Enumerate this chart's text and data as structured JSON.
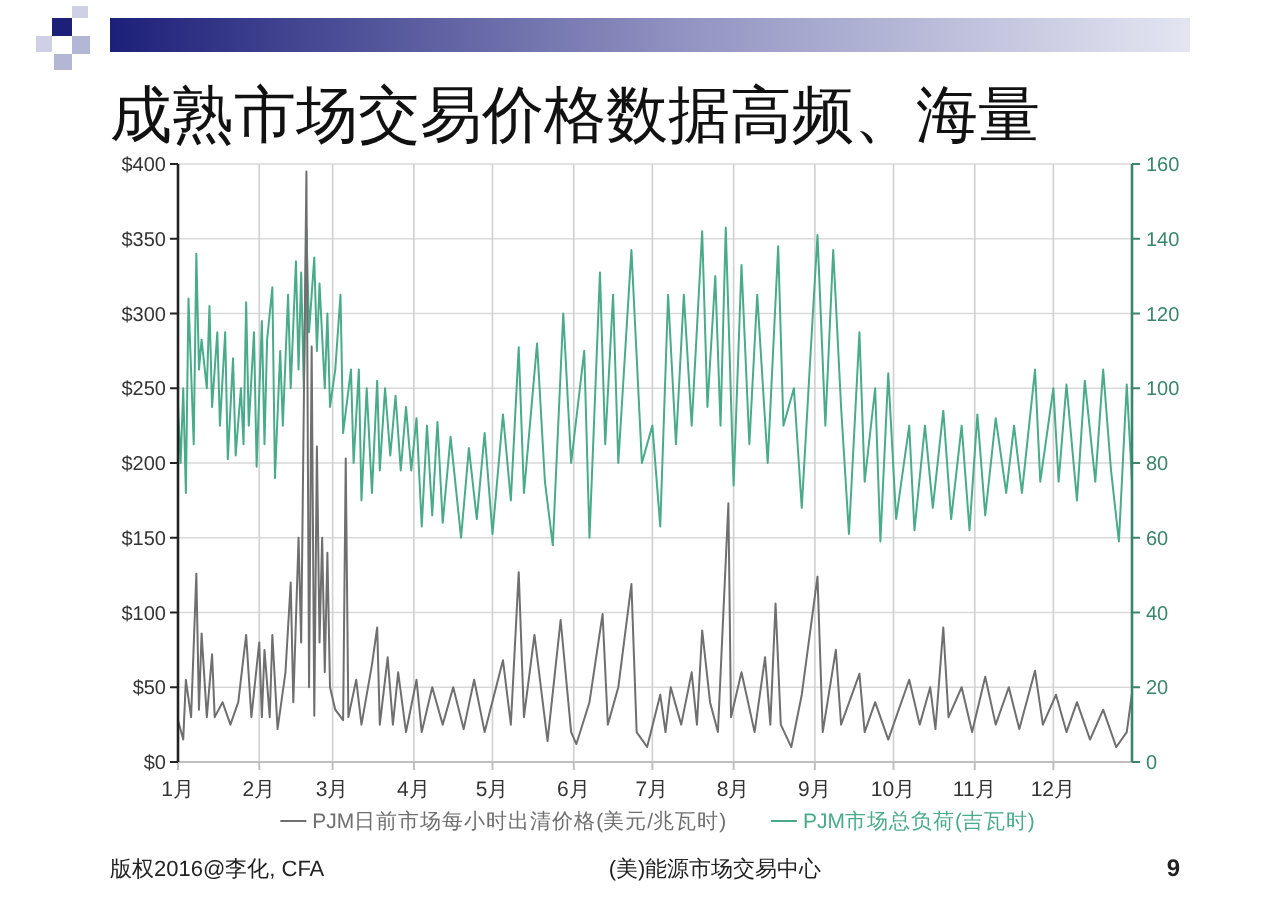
{
  "chart_data": {
    "type": "line",
    "title": "成熟市场交易价格数据高频、海量",
    "xlim": [
      "--01-01",
      "--12-31"
    ],
    "xticks": [
      {
        "value": "--01-01",
        "label": "1月"
      },
      {
        "value": "--02-01",
        "label": "2月"
      },
      {
        "value": "--03-01",
        "label": "3月"
      },
      {
        "value": "--04-01",
        "label": "4月"
      },
      {
        "value": "--05-01",
        "label": "5月"
      },
      {
        "value": "--06-01",
        "label": "6月"
      },
      {
        "value": "--07-01",
        "label": "7月"
      },
      {
        "value": "--08-01",
        "label": "8月"
      },
      {
        "value": "--09-01",
        "label": "9月"
      },
      {
        "value": "--10-01",
        "label": "10月"
      },
      {
        "value": "--11-01",
        "label": "11月"
      },
      {
        "value": "--12-01",
        "label": "12月"
      }
    ],
    "ylim": [
      0,
      400
    ],
    "yticks": [
      {
        "value": 0,
        "label": "$0"
      },
      {
        "value": 50,
        "label": "$50"
      },
      {
        "value": 100,
        "label": "$100"
      },
      {
        "value": 150,
        "label": "$150"
      },
      {
        "value": 200,
        "label": "$200"
      },
      {
        "value": 250,
        "label": "$250"
      },
      {
        "value": 300,
        "label": "$300"
      },
      {
        "value": 350,
        "label": "$350"
      },
      {
        "value": 400,
        "label": "$400"
      }
    ],
    "y2lim": [
      0,
      160
    ],
    "y2ticks": [
      0,
      20,
      40,
      60,
      80,
      100,
      120,
      140,
      160
    ],
    "grid": true,
    "legend": "bottom",
    "series": [
      {
        "name": "PJM日前市场每小时出清价格(美元/兆瓦时)",
        "color": "#6f6f6f",
        "x": [
          "--01-01",
          "--01-03",
          "--01-04",
          "--01-06",
          "--01-08",
          "--01-09",
          "--01-10",
          "--01-12",
          "--01-14",
          "--01-15",
          "--01-18",
          "--01-21",
          "--01-24",
          "--01-27",
          "--01-29",
          "--02-01",
          "--02-02",
          "--02-03",
          "--02-05",
          "--02-06",
          "--02-08",
          "--02-11",
          "--02-13",
          "--02-14",
          "--02-16",
          "--02-17",
          "--02-19",
          "--02-20",
          "--02-21",
          "--02-22",
          "--02-23",
          "--02-24",
          "--02-25",
          "--02-26",
          "--02-27",
          "--02-28",
          "--03-02",
          "--03-05",
          "--03-06",
          "--03-07",
          "--03-10",
          "--03-12",
          "--03-16",
          "--03-18",
          "--03-19",
          "--03-22",
          "--03-24",
          "--03-26",
          "--03-29",
          "--04-02",
          "--04-04",
          "--04-08",
          "--04-12",
          "--04-16",
          "--04-20",
          "--04-24",
          "--04-28",
          "--05-05",
          "--05-08",
          "--05-11",
          "--05-13",
          "--05-17",
          "--05-22",
          "--05-27",
          "--05-31",
          "--06-02",
          "--06-07",
          "--06-12",
          "--06-14",
          "--06-18",
          "--06-23",
          "--06-25",
          "--06-29",
          "--07-04",
          "--07-06",
          "--07-08",
          "--07-12",
          "--07-16",
          "--07-18",
          "--07-20",
          "--07-23",
          "--07-26",
          "--07-30",
          "--07-31",
          "--08-04",
          "--08-09",
          "--08-13",
          "--08-15",
          "--08-17",
          "--08-19",
          "--08-23",
          "--08-27",
          "--09-02",
          "--09-04",
          "--09-09",
          "--09-11",
          "--09-18",
          "--09-20",
          "--09-24",
          "--09-29",
          "--10-07",
          "--10-11",
          "--10-15",
          "--10-17",
          "--10-20",
          "--10-22",
          "--10-27",
          "--10-31",
          "--11-05",
          "--11-09",
          "--11-14",
          "--11-18",
          "--11-24",
          "--11-27",
          "--12-02",
          "--12-06",
          "--12-10",
          "--12-15",
          "--12-20",
          "--12-25",
          "--12-29",
          "--12-31"
        ],
        "values": [
          28,
          15,
          55,
          30,
          126,
          35,
          86,
          30,
          72,
          30,
          40,
          25,
          40,
          85,
          30,
          80,
          30,
          75,
          30,
          85,
          22,
          60,
          120,
          40,
          150,
          80,
          395,
          50,
          278,
          31,
          211,
          80,
          150,
          60,
          140,
          50,
          35,
          28,
          203,
          30,
          55,
          25,
          65,
          90,
          25,
          70,
          25,
          60,
          20,
          55,
          20,
          50,
          25,
          50,
          22,
          55,
          20,
          68,
          25,
          127,
          30,
          85,
          14,
          95,
          20,
          12,
          40,
          99,
          25,
          50,
          119,
          20,
          10,
          45,
          20,
          50,
          25,
          60,
          25,
          88,
          40,
          20,
          173,
          30,
          60,
          20,
          70,
          25,
          106,
          25,
          10,
          45,
          124,
          20,
          75,
          25,
          59,
          20,
          40,
          15,
          55,
          25,
          50,
          22,
          90,
          30,
          50,
          20,
          57,
          25,
          50,
          22,
          61,
          25,
          45,
          20,
          40,
          15,
          35,
          10,
          20,
          46
        ]
      },
      {
        "name": "PJM市场总负荷(吉瓦时)",
        "color": "#4aab8a",
        "axis": "y2",
        "x": [
          "--01-01",
          "--01-02",
          "--01-03",
          "--01-04",
          "--01-05",
          "--01-07",
          "--01-08",
          "--01-09",
          "--01-10",
          "--01-12",
          "--01-13",
          "--01-14",
          "--01-16",
          "--01-17",
          "--01-19",
          "--01-20",
          "--01-22",
          "--01-23",
          "--01-25",
          "--01-26",
          "--01-27",
          "--01-28",
          "--01-30",
          "--01-31",
          "--02-02",
          "--02-03",
          "--02-04",
          "--02-06",
          "--02-07",
          "--02-09",
          "--02-10",
          "--02-12",
          "--02-13",
          "--02-15",
          "--02-16",
          "--02-17",
          "--02-18",
          "--02-19",
          "--02-20",
          "--02-22",
          "--02-23",
          "--02-24",
          "--02-26",
          "--02-27",
          "--02-28",
          "--03-02",
          "--03-04",
          "--03-05",
          "--03-08",
          "--03-09",
          "--03-11",
          "--03-12",
          "--03-14",
          "--03-16",
          "--03-18",
          "--03-19",
          "--03-21",
          "--03-23",
          "--03-25",
          "--03-27",
          "--03-29",
          "--03-31",
          "--04-02",
          "--04-04",
          "--04-06",
          "--04-08",
          "--04-10",
          "--04-12",
          "--04-15",
          "--04-19",
          "--04-22",
          "--04-25",
          "--04-28",
          "--05-01",
          "--05-05",
          "--05-08",
          "--05-11",
          "--05-13",
          "--05-18",
          "--05-21",
          "--05-24",
          "--05-28",
          "--05-31",
          "--06-05",
          "--06-07",
          "--06-11",
          "--06-13",
          "--06-16",
          "--06-18",
          "--06-23",
          "--06-27",
          "--07-01",
          "--07-04",
          "--07-07",
          "--07-10",
          "--07-13",
          "--07-16",
          "--07-20",
          "--07-22",
          "--07-25",
          "--07-27",
          "--07-29",
          "--08-01",
          "--08-04",
          "--08-07",
          "--08-10",
          "--08-14",
          "--08-18",
          "--08-20",
          "--08-24",
          "--08-27",
          "--08-30",
          "--09-02",
          "--09-05",
          "--09-08",
          "--09-11",
          "--09-14",
          "--09-18",
          "--09-20",
          "--09-24",
          "--09-26",
          "--09-29",
          "--10-02",
          "--10-07",
          "--10-09",
          "--10-13",
          "--10-16",
          "--10-20",
          "--10-23",
          "--10-27",
          "--10-30",
          "--11-02",
          "--11-05",
          "--11-09",
          "--11-13",
          "--11-16",
          "--11-19",
          "--11-24",
          "--11-26",
          "--12-01",
          "--12-03",
          "--12-06",
          "--12-10",
          "--12-13",
          "--12-17",
          "--12-20",
          "--12-23",
          "--12-26",
          "--12-29",
          "--12-31"
        ],
        "values": [
          95,
          80,
          100,
          72,
          124,
          85,
          136,
          105,
          113,
          100,
          122,
          95,
          115,
          90,
          115,
          81,
          108,
          82,
          100,
          85,
          123,
          90,
          115,
          79,
          118,
          85,
          113,
          127,
          76,
          110,
          90,
          125,
          100,
          134,
          105,
          131,
          100,
          143,
          115,
          135,
          110,
          128,
          100,
          120,
          95,
          105,
          125,
          88,
          105,
          80,
          105,
          70,
          100,
          72,
          102,
          78,
          100,
          82,
          98,
          78,
          95,
          78,
          92,
          63,
          90,
          66,
          91,
          64,
          87,
          60,
          84,
          65,
          88,
          61,
          93,
          70,
          111,
          72,
          112,
          75,
          58,
          120,
          80,
          110,
          60,
          131,
          85,
          125,
          80,
          137,
          80,
          90,
          63,
          125,
          85,
          125,
          90,
          142,
          95,
          130,
          90,
          143,
          74,
          133,
          85,
          125,
          80,
          138,
          90,
          100,
          68,
          105,
          141,
          90,
          137,
          95,
          61,
          115,
          75,
          100,
          59,
          104,
          65,
          90,
          62,
          90,
          68,
          94,
          65,
          90,
          62,
          93,
          66,
          92,
          72,
          90,
          72,
          105,
          75,
          100,
          75,
          101,
          70,
          102,
          75,
          105,
          78,
          59,
          101,
          75
        ]
      }
    ],
    "annotations": [
      "版权2016@李化, CFA",
      "(美)能源市场交易中心",
      "9"
    ]
  }
}
